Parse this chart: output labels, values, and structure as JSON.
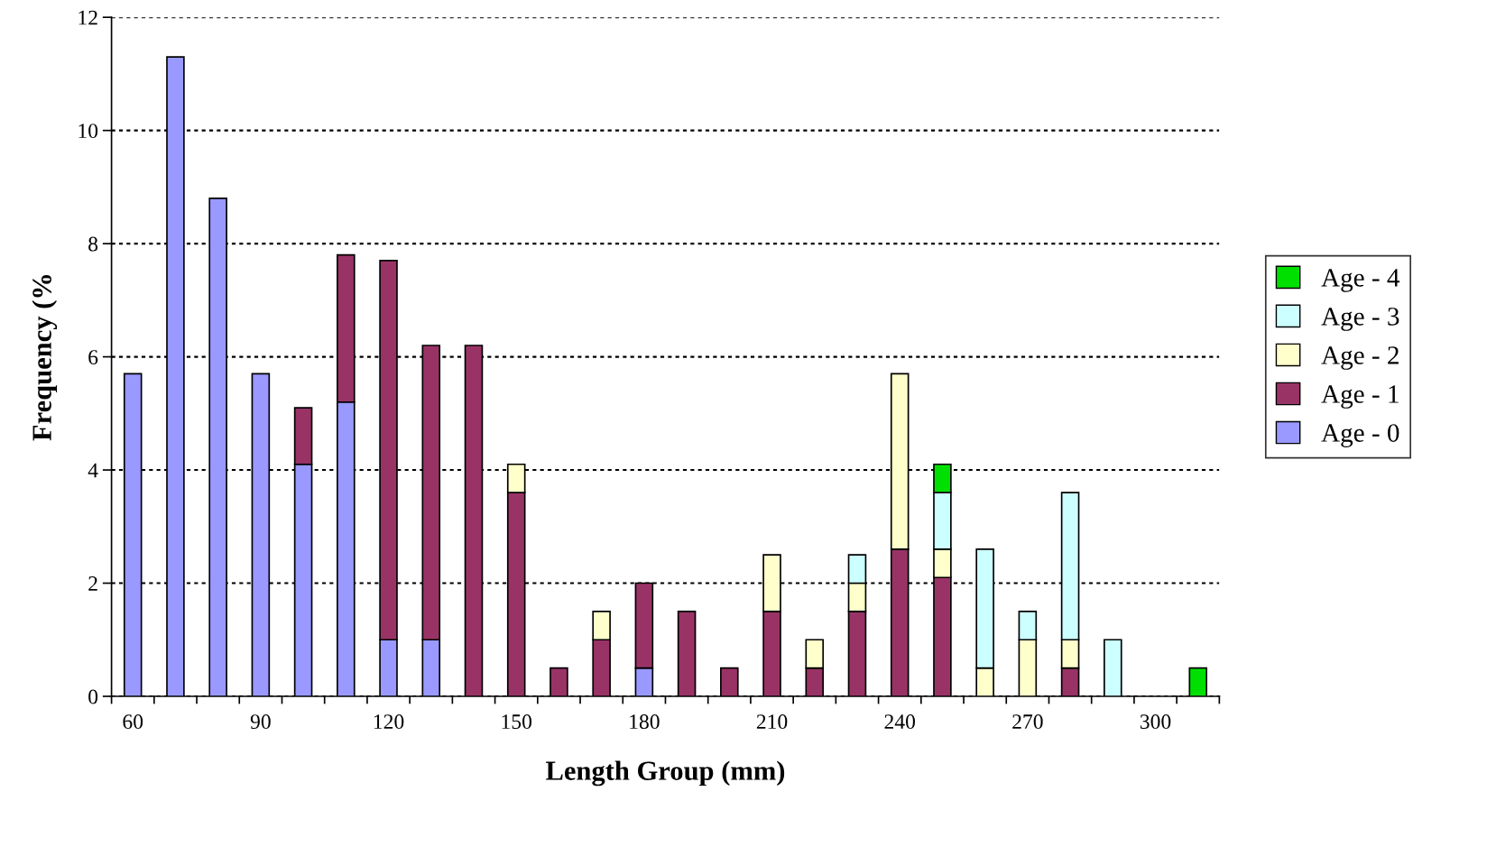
{
  "chart_data": {
    "type": "bar",
    "stacked": true,
    "xlabel": "Length Group (mm)",
    "ylabel": "Frequency (%",
    "categories": [
      "60",
      null,
      null,
      "90",
      null,
      null,
      "120",
      null,
      null,
      "150",
      null,
      null,
      "180",
      null,
      null,
      "210",
      null,
      null,
      "240",
      null,
      null,
      "270",
      null,
      null,
      "300",
      null
    ],
    "series": [
      {
        "name": "Age - 0",
        "color": "#9999ff",
        "values": [
          5.7,
          11.3,
          8.8,
          5.7,
          4.1,
          5.2,
          1.0,
          1.0,
          null,
          null,
          null,
          null,
          0.5,
          null,
          null,
          null,
          null,
          null,
          null,
          null,
          null,
          null,
          null,
          null,
          null,
          null
        ]
      },
      {
        "name": "Age - 1",
        "color": "#993366",
        "values": [
          null,
          null,
          null,
          null,
          1.0,
          2.6,
          6.7,
          5.2,
          6.2,
          3.6,
          0.5,
          1.0,
          1.5,
          1.5,
          0.5,
          1.5,
          0.5,
          1.5,
          2.6,
          2.1,
          null,
          null,
          0.5,
          null,
          null,
          null
        ]
      },
      {
        "name": "Age - 2",
        "color": "#ffffcc",
        "values": [
          null,
          null,
          null,
          null,
          null,
          null,
          null,
          null,
          null,
          0.5,
          null,
          0.5,
          null,
          null,
          null,
          1.0,
          0.5,
          0.5,
          3.1,
          0.5,
          0.5,
          1.0,
          0.5,
          null,
          null,
          null
        ]
      },
      {
        "name": "Age - 3",
        "color": "#ccffff",
        "values": [
          null,
          null,
          null,
          null,
          null,
          null,
          null,
          null,
          null,
          null,
          null,
          null,
          null,
          null,
          null,
          null,
          null,
          0.5,
          null,
          1.0,
          2.1,
          0.5,
          2.6,
          1.0,
          null,
          null
        ]
      },
      {
        "name": "Age - 4",
        "color": "#00e000",
        "values": [
          null,
          null,
          null,
          null,
          null,
          null,
          null,
          null,
          null,
          null,
          null,
          null,
          null,
          null,
          null,
          null,
          null,
          null,
          null,
          0.5,
          null,
          null,
          null,
          null,
          null,
          0.5
        ]
      }
    ],
    "ylim": [
      0,
      12
    ],
    "yticks": [
      0,
      2,
      4,
      6,
      8,
      10,
      12
    ],
    "grid": "y",
    "legend": "right"
  }
}
